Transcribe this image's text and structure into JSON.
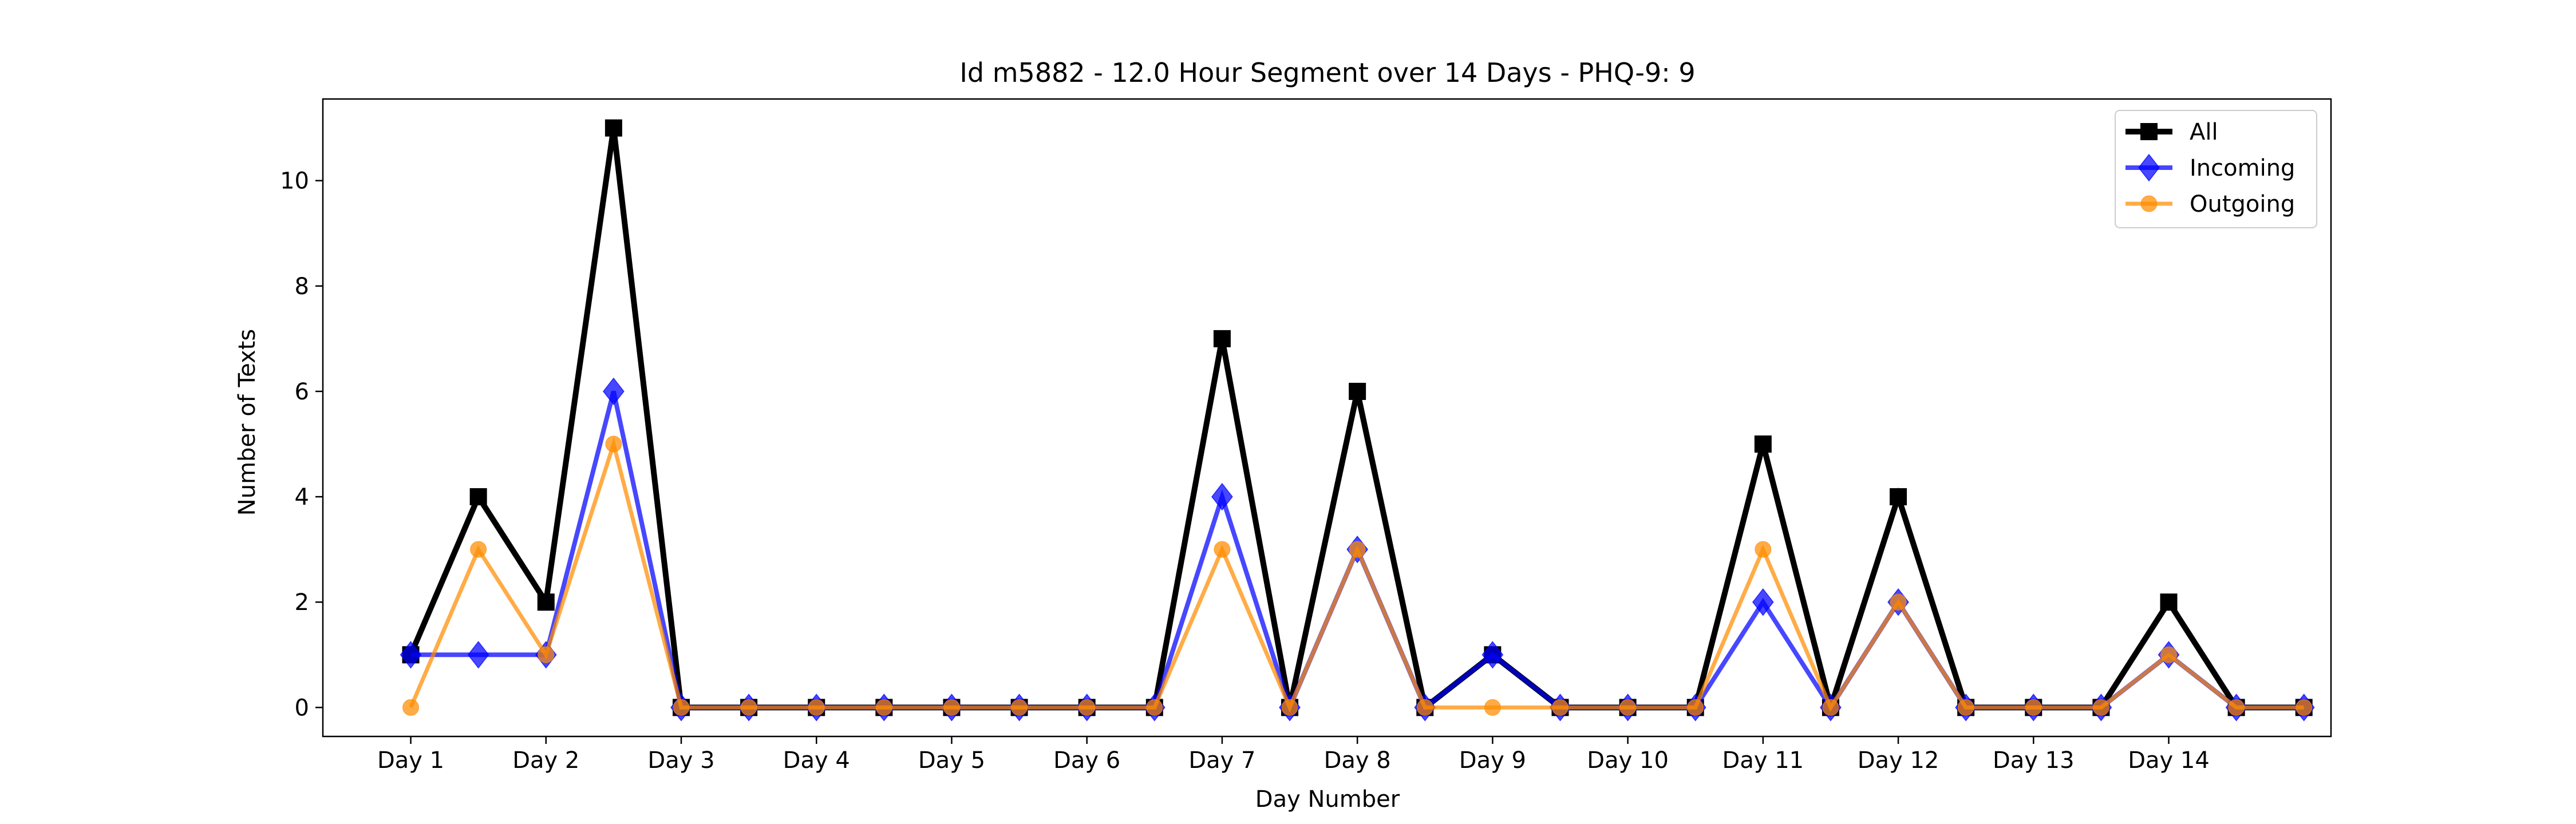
{
  "chart_data": {
    "type": "line",
    "title": "Id m5882 - 12.0 Hour Segment over 14 Days - PHQ-9: 9",
    "xlabel": "Day Number",
    "ylabel": "Number of Texts",
    "x_tick_labels": [
      "Day 1",
      "Day 2",
      "Day 3",
      "Day 4",
      "Day 5",
      "Day 6",
      "Day 7",
      "Day 8",
      "Day 9",
      "Day 10",
      "Day 11",
      "Day 12",
      "Day 13",
      "Day 14"
    ],
    "y_ticks": [
      0,
      2,
      4,
      6,
      8,
      10
    ],
    "xlim": [
      0.35,
      15.2
    ],
    "ylim": [
      -0.55,
      11.55
    ],
    "grid": false,
    "legend_position": "top-right",
    "series": [
      {
        "name": "All",
        "color": "#000000",
        "marker": "square",
        "values": [
          1,
          4,
          2,
          11,
          0,
          0,
          0,
          0,
          0,
          0,
          0,
          0,
          7,
          0,
          6,
          0,
          1,
          0,
          0,
          0,
          5,
          0,
          4,
          0,
          0,
          0,
          2,
          0,
          0
        ]
      },
      {
        "name": "Incoming",
        "color": "#0000ff",
        "marker": "diamond",
        "values": [
          1,
          1,
          1,
          6,
          0,
          0,
          0,
          0,
          0,
          0,
          0,
          0,
          4,
          0,
          3,
          0,
          1,
          0,
          0,
          0,
          2,
          0,
          2,
          0,
          0,
          0,
          1,
          0,
          0
        ]
      },
      {
        "name": "Outgoing",
        "color": "#ff8c00",
        "marker": "circle",
        "values": [
          0,
          3,
          1,
          5,
          0,
          0,
          0,
          0,
          0,
          0,
          0,
          0,
          3,
          0,
          3,
          0,
          0,
          0,
          0,
          0,
          3,
          0,
          2,
          0,
          0,
          0,
          1,
          0,
          0
        ]
      }
    ]
  }
}
